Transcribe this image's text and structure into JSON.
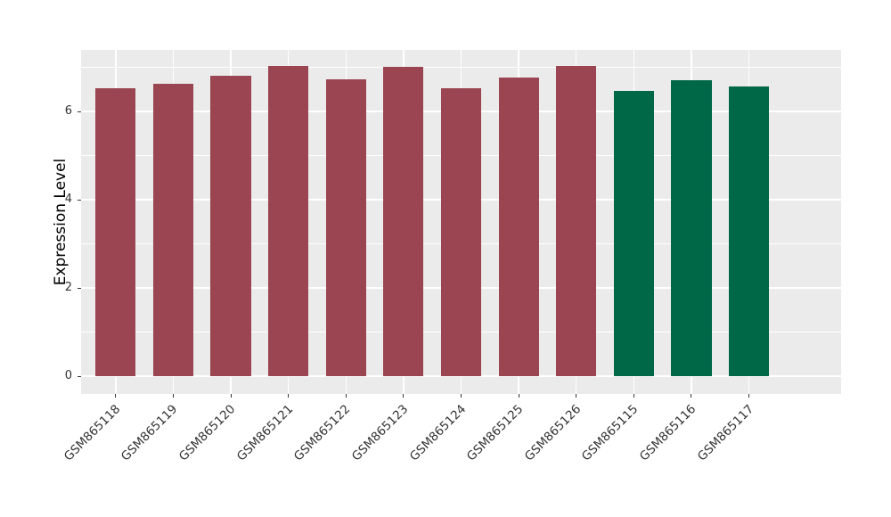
{
  "figure": {
    "background": "#ffffff",
    "panel_background": "#EBEBEB",
    "grid_color": "#ffffff",
    "tick_color": "#333333",
    "axis_text_color": "#333333"
  },
  "chart_data": {
    "type": "bar",
    "title": "",
    "xlabel": "",
    "ylabel": "Expression Level",
    "categories": [
      "GSM865118",
      "GSM865119",
      "GSM865120",
      "GSM865121",
      "GSM865122",
      "GSM865123",
      "GSM865124",
      "GSM865125",
      "GSM865126",
      "GSM865115",
      "GSM865116",
      "GSM865117"
    ],
    "values": [
      6.54,
      6.64,
      6.82,
      7.03,
      6.74,
      7.01,
      6.54,
      6.77,
      7.03,
      6.48,
      6.72,
      6.57
    ],
    "bar_colors": [
      "#9A4551",
      "#9A4551",
      "#9A4551",
      "#9A4551",
      "#9A4551",
      "#9A4551",
      "#9A4551",
      "#9A4551",
      "#9A4551",
      "#006747",
      "#006747",
      "#006747"
    ],
    "group_colors": {
      "maroon": "#9A4551",
      "green": "#006747"
    },
    "ylim": [
      -0.4,
      7.4
    ],
    "yticks_major": [
      0,
      2,
      4,
      6
    ],
    "yticks_minor": [
      1,
      3,
      5,
      7
    ],
    "grid": true,
    "legend": "none",
    "bar_width_fraction": 0.7,
    "x_label_rotation_deg": 45
  }
}
